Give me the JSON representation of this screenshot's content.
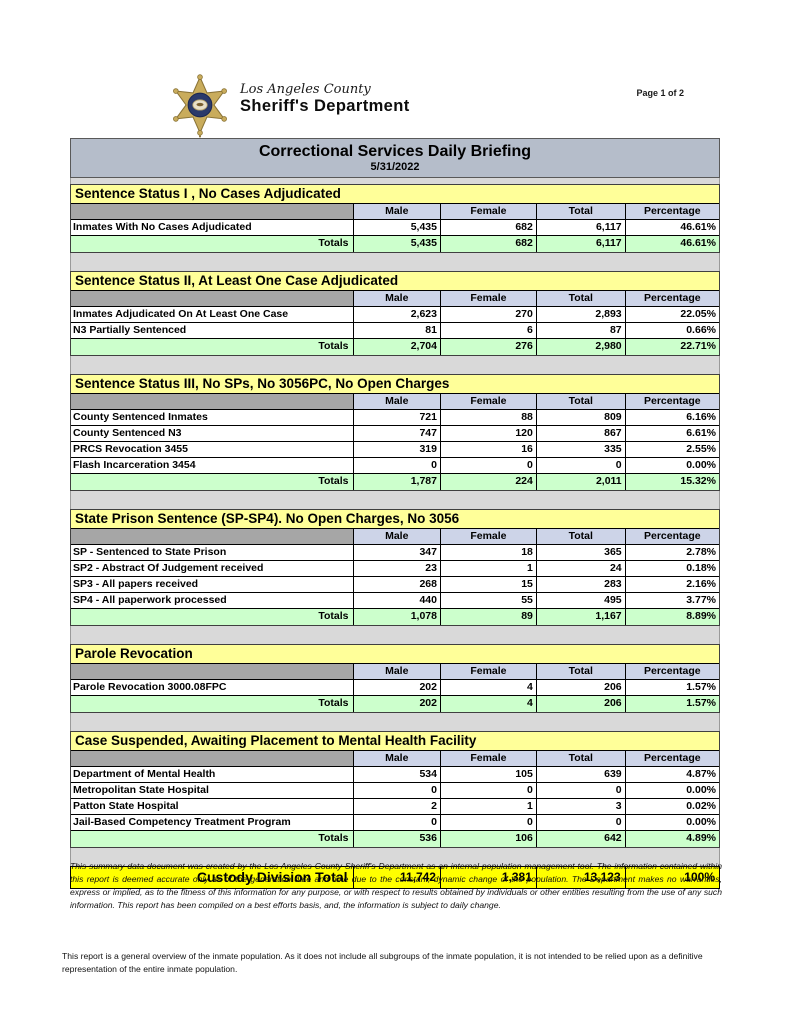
{
  "page": {
    "page_label": "Page 1 of 2"
  },
  "logo": {
    "badge_icon": "sheriff-star-badge",
    "county": "Los Angeles County",
    "department": "Sheriff's Department"
  },
  "title_bar": {
    "title": "Correctional Services Daily Briefing",
    "date": "5/31/2022"
  },
  "table": {
    "columns": [
      "Male",
      "Female",
      "Total",
      "Percentage"
    ],
    "totals_label": "Totals"
  },
  "sections": [
    {
      "title": "Sentence Status I , No Cases Adjudicated",
      "rows": [
        {
          "label": "Inmates With No Cases Adjudicated",
          "male": "5,435",
          "female": "682",
          "total": "6,117",
          "percentage": "46.61%"
        }
      ],
      "totals": {
        "male": "5,435",
        "female": "682",
        "total": "6,117",
        "percentage": "46.61%"
      }
    },
    {
      "title": "Sentence Status II, At Least One Case Adjudicated",
      "rows": [
        {
          "label": "Inmates Adjudicated On At Least One Case",
          "male": "2,623",
          "female": "270",
          "total": "2,893",
          "percentage": "22.05%"
        },
        {
          "label": "N3 Partially Sentenced",
          "male": "81",
          "female": "6",
          "total": "87",
          "percentage": "0.66%"
        }
      ],
      "totals": {
        "male": "2,704",
        "female": "276",
        "total": "2,980",
        "percentage": "22.71%"
      }
    },
    {
      "title": "Sentence Status III, No SPs, No 3056PC, No Open Charges",
      "rows": [
        {
          "label": "County Sentenced Inmates",
          "male": "721",
          "female": "88",
          "total": "809",
          "percentage": "6.16%"
        },
        {
          "label": "County Sentenced N3",
          "male": "747",
          "female": "120",
          "total": "867",
          "percentage": "6.61%"
        },
        {
          "label": "PRCS Revocation 3455",
          "male": "319",
          "female": "16",
          "total": "335",
          "percentage": "2.55%"
        },
        {
          "label": "Flash Incarceration 3454",
          "male": "0",
          "female": "0",
          "total": "0",
          "percentage": "0.00%"
        }
      ],
      "totals": {
        "male": "1,787",
        "female": "224",
        "total": "2,011",
        "percentage": "15.32%"
      }
    },
    {
      "title": "State Prison Sentence (SP-SP4). No Open Charges, No 3056",
      "rows": [
        {
          "label": "SP - Sentenced to State Prison",
          "male": "347",
          "female": "18",
          "total": "365",
          "percentage": "2.78%"
        },
        {
          "label": "SP2 - Abstract Of Judgement received",
          "male": "23",
          "female": "1",
          "total": "24",
          "percentage": "0.18%"
        },
        {
          "label": "SP3 - All papers received",
          "male": "268",
          "female": "15",
          "total": "283",
          "percentage": "2.16%"
        },
        {
          "label": "SP4 - All paperwork processed",
          "male": "440",
          "female": "55",
          "total": "495",
          "percentage": "3.77%"
        }
      ],
      "totals": {
        "male": "1,078",
        "female": "89",
        "total": "1,167",
        "percentage": "8.89%"
      }
    },
    {
      "title": "Parole Revocation",
      "rows": [
        {
          "label": "Parole Revocation 3000.08FPC",
          "male": "202",
          "female": "4",
          "total": "206",
          "percentage": "1.57%"
        }
      ],
      "totals": {
        "male": "202",
        "female": "4",
        "total": "206",
        "percentage": "1.57%"
      }
    },
    {
      "title": "Case Suspended, Awaiting Placement to Mental Health Facility",
      "rows": [
        {
          "label": "Department of Mental Health",
          "male": "534",
          "female": "105",
          "total": "639",
          "percentage": "4.87%"
        },
        {
          "label": "Metropolitan State Hospital",
          "male": "0",
          "female": "0",
          "total": "0",
          "percentage": "0.00%"
        },
        {
          "label": "Patton State Hospital",
          "male": "2",
          "female": "1",
          "total": "3",
          "percentage": "0.02%"
        },
        {
          "label": "Jail-Based Competency Treatment Program",
          "male": "0",
          "female": "0",
          "total": "0",
          "percentage": "0.00%"
        }
      ],
      "totals": {
        "male": "536",
        "female": "106",
        "total": "642",
        "percentage": "4.89%"
      }
    }
  ],
  "grand_total": {
    "label": "Custody Division Total",
    "male": "11,742",
    "female": "1,381",
    "total": "13,123",
    "percentage": "100%"
  },
  "notes": {
    "disclaimer": "This summary data document was created by the Los Angeles County Sheriff's Department as an internal population management tool.  The information contained within this report is deemed accurate only as of the generation date and time due to the constant, dynamic change of the population.  The Department makes no warranties, express or implied, as to the fitness of this information for any purpose, or with respect to results obtained by individuals or other entities resulting from the use of any such information.  This report has been compiled on a best efforts basis, and, the information is subject to daily change.",
    "footnote": "This report is a general overview of the inmate population.  As it does not include all subgroups of the inmate population, it is not intended to be relied upon as a definitive representation of the entire inmate population."
  },
  "colors": {
    "title_bar_bg": "#B5BDCA",
    "section_header_bg": "#FFFF99",
    "column_header_bg": "#CDD4E8",
    "corner_cell_bg": "#A6A6A6",
    "totals_row_bg": "#CCFFCC",
    "grand_total_bg": "#FFFF00",
    "gap_bg": "#D9D9D9"
  }
}
